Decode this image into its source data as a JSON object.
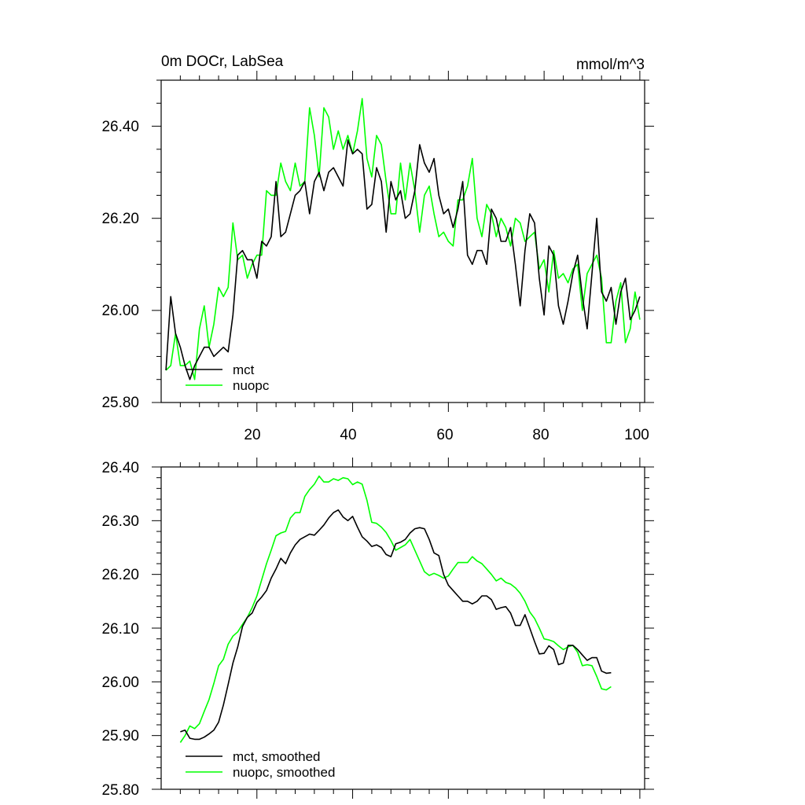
{
  "chart_data": [
    {
      "type": "line",
      "title": "0m DOCr, LabSea",
      "units": "mmol/m^3",
      "xlim": [
        0,
        101
      ],
      "ylim": [
        25.8,
        26.5
      ],
      "xticks": [
        20,
        40,
        60,
        80,
        100
      ],
      "xtick_labels": [
        "20",
        "40",
        "60",
        "80",
        "100"
      ],
      "yticks": [
        25.8,
        26.0,
        26.2,
        26.4
      ],
      "ytick_labels": [
        "25.80",
        "26.00",
        "26.20",
        "26.40"
      ],
      "legend_position": "bottom-left",
      "x_start": 1,
      "series": [
        {
          "name": "mct",
          "color": "#000000",
          "values": [
            25.87,
            26.03,
            25.95,
            25.92,
            25.88,
            25.85,
            25.88,
            25.9,
            25.92,
            25.92,
            25.9,
            25.91,
            25.92,
            25.91,
            25.99,
            26.12,
            26.13,
            26.11,
            26.11,
            26.07,
            26.15,
            26.14,
            26.16,
            26.28,
            26.16,
            26.17,
            26.21,
            26.25,
            26.26,
            26.28,
            26.21,
            26.28,
            26.3,
            26.26,
            26.3,
            26.31,
            26.29,
            26.27,
            26.37,
            26.34,
            26.35,
            26.34,
            26.22,
            26.23,
            26.31,
            26.28,
            26.17,
            26.28,
            26.24,
            26.26,
            26.2,
            26.21,
            26.26,
            26.36,
            26.32,
            26.3,
            26.33,
            26.25,
            26.21,
            26.22,
            26.18,
            26.22,
            26.28,
            26.12,
            26.1,
            26.13,
            26.13,
            26.1,
            26.22,
            26.2,
            26.15,
            26.15,
            26.18,
            26.1,
            26.01,
            26.13,
            26.21,
            26.19,
            26.07,
            25.99,
            26.14,
            26.12,
            26.01,
            25.97,
            26.02,
            26.08,
            26.12,
            26.03,
            25.96,
            26.08,
            26.2,
            26.04,
            26.02,
            26.05,
            25.97,
            26.04,
            26.07,
            25.98,
            26.0,
            26.03
          ]
        },
        {
          "name": "nuopc",
          "color": "#00ff00",
          "values": [
            25.87,
            25.88,
            25.95,
            25.88,
            25.88,
            25.89,
            25.85,
            25.96,
            26.01,
            25.92,
            25.97,
            26.05,
            26.03,
            26.05,
            26.19,
            26.11,
            26.12,
            26.07,
            26.1,
            26.12,
            26.12,
            26.26,
            26.25,
            26.25,
            26.32,
            26.28,
            26.26,
            26.32,
            26.27,
            26.28,
            26.44,
            26.38,
            26.29,
            26.44,
            26.42,
            26.35,
            26.39,
            26.35,
            26.38,
            26.34,
            26.39,
            26.46,
            26.33,
            26.29,
            26.38,
            26.36,
            26.28,
            26.21,
            26.21,
            26.32,
            26.24,
            26.32,
            26.26,
            26.17,
            26.25,
            26.27,
            26.21,
            26.16,
            26.17,
            26.15,
            26.14,
            26.24,
            26.24,
            26.27,
            26.33,
            26.2,
            26.16,
            26.23,
            26.21,
            26.16,
            26.2,
            26.18,
            26.14,
            26.2,
            26.19,
            26.15,
            26.16,
            26.17,
            26.09,
            26.11,
            26.04,
            26.13,
            26.07,
            26.08,
            26.06,
            26.09,
            26.1,
            26.0,
            26.08,
            26.1,
            26.12,
            26.07,
            25.93,
            25.93,
            26.02,
            26.06,
            25.93,
            25.96,
            26.04,
            25.98
          ]
        }
      ]
    },
    {
      "type": "line",
      "title": "",
      "xlim": [
        0,
        101
      ],
      "ylim": [
        25.8,
        26.4
      ],
      "xticks": [
        20,
        40,
        60,
        80,
        100
      ],
      "yticks": [
        25.8,
        25.9,
        26.0,
        26.1,
        26.2,
        26.3,
        26.4
      ],
      "ytick_labels": [
        "25.80",
        "25.90",
        "26.00",
        "26.10",
        "26.20",
        "26.30",
        "26.40"
      ],
      "legend_position": "bottom-left",
      "x_start": 4,
      "series": [
        {
          "name": "mct, smoothed",
          "color": "#000000",
          "values": [
            25.907,
            25.91,
            25.895,
            25.893,
            25.893,
            25.897,
            25.903,
            25.91,
            25.925,
            25.957,
            25.995,
            26.035,
            26.065,
            26.103,
            26.12,
            26.128,
            26.148,
            26.158,
            26.17,
            26.193,
            26.21,
            26.23,
            26.22,
            26.24,
            26.255,
            26.265,
            26.27,
            26.275,
            26.273,
            26.282,
            26.292,
            26.305,
            26.315,
            26.32,
            26.307,
            26.3,
            26.308,
            26.288,
            26.27,
            26.262,
            26.252,
            26.255,
            26.25,
            26.237,
            26.233,
            26.257,
            26.26,
            26.265,
            26.277,
            26.285,
            26.287,
            26.285,
            26.265,
            26.24,
            26.235,
            26.2,
            26.18,
            26.17,
            26.16,
            26.15,
            26.15,
            26.145,
            26.15,
            26.16,
            26.16,
            26.153,
            26.135,
            26.138,
            26.14,
            26.128,
            26.105,
            26.105,
            26.125,
            26.1,
            26.075,
            26.052,
            26.053,
            26.067,
            26.06,
            26.032,
            26.035,
            26.068,
            26.068,
            26.06,
            26.05,
            26.04,
            26.045,
            26.045,
            26.02,
            26.016,
            26.017
          ]
        },
        {
          "name": "nuopc, smoothed",
          "color": "#00ff00",
          "values": [
            25.887,
            25.9,
            25.918,
            25.913,
            25.922,
            25.945,
            25.967,
            25.997,
            26.03,
            26.042,
            26.07,
            26.085,
            26.093,
            26.107,
            26.12,
            26.138,
            26.16,
            26.19,
            26.22,
            26.245,
            26.272,
            26.277,
            26.28,
            26.305,
            26.315,
            26.315,
            26.345,
            26.358,
            26.368,
            26.383,
            26.372,
            26.372,
            26.378,
            26.375,
            26.38,
            26.378,
            26.367,
            26.372,
            26.368,
            26.338,
            26.297,
            26.295,
            26.288,
            26.278,
            26.263,
            26.245,
            26.25,
            26.255,
            26.265,
            26.245,
            26.225,
            26.205,
            26.198,
            26.202,
            26.198,
            26.193,
            26.197,
            26.21,
            26.222,
            26.222,
            26.222,
            26.233,
            26.225,
            26.22,
            26.21,
            26.2,
            26.188,
            26.193,
            26.185,
            26.182,
            26.175,
            26.165,
            26.15,
            26.13,
            26.118,
            26.1,
            26.08,
            26.078,
            26.075,
            26.067,
            26.06,
            26.065,
            26.068,
            26.055,
            26.03,
            26.032,
            26.03,
            26.01,
            25.987,
            25.985,
            25.991
          ]
        }
      ]
    }
  ]
}
